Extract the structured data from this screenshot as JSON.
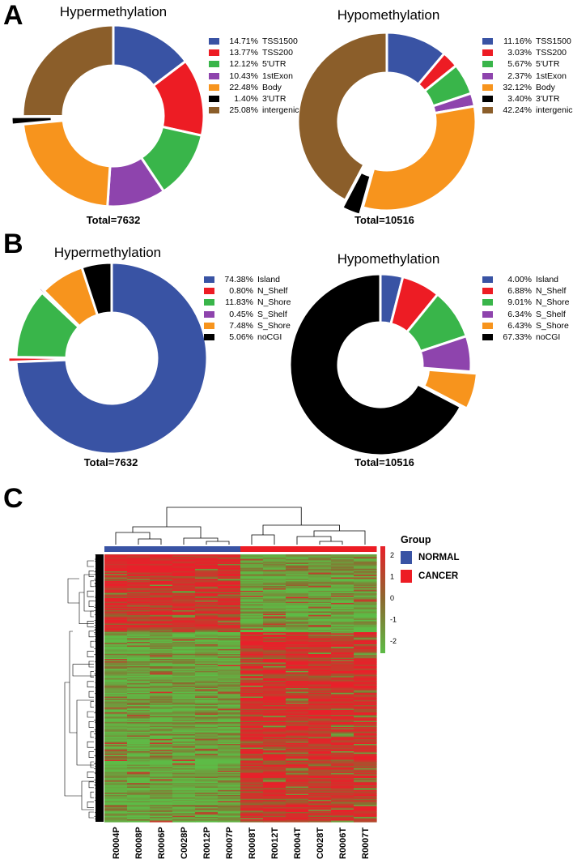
{
  "panels": {
    "a_label": "A",
    "b_label": "B",
    "c_label": "C"
  },
  "chart_data": [
    {
      "type": "pie",
      "variant": "donut",
      "panel": "A",
      "title": "Hypermethylation",
      "total_label": "Total=7632",
      "slices": [
        {
          "pct": "14.71%",
          "label": "TSS1500",
          "value": 14.71,
          "color": "#3953a4"
        },
        {
          "pct": "13.77%",
          "label": "TSS200",
          "value": 13.77,
          "color": "#ed1c24"
        },
        {
          "pct": "12.12%",
          "label": "5'UTR",
          "value": 12.12,
          "color": "#39b54a"
        },
        {
          "pct": "10.43%",
          "label": "1stExon",
          "value": 10.43,
          "color": "#8e44ad"
        },
        {
          "pct": "22.48%",
          "label": "Body",
          "value": 22.48,
          "color": "#f7941d"
        },
        {
          "pct": "1.40%",
          "label": "3'UTR",
          "value": 1.4,
          "color": "#000000"
        },
        {
          "pct": "25.08%",
          "label": "intergenic",
          "value": 25.08,
          "color": "#8b5e2a"
        }
      ]
    },
    {
      "type": "pie",
      "variant": "donut",
      "panel": "A",
      "title": "Hypomethylation",
      "total_label": "Total=10516",
      "slices": [
        {
          "pct": "11.16%",
          "label": "TSS1500",
          "value": 11.16,
          "color": "#3953a4"
        },
        {
          "pct": "3.03%",
          "label": "TSS200",
          "value": 3.03,
          "color": "#ed1c24"
        },
        {
          "pct": "5.67%",
          "label": "5'UTR",
          "value": 5.67,
          "color": "#39b54a"
        },
        {
          "pct": "2.37%",
          "label": "1stExon",
          "value": 2.37,
          "color": "#8e44ad"
        },
        {
          "pct": "32.12%",
          "label": "Body",
          "value": 32.12,
          "color": "#f7941d"
        },
        {
          "pct": "3.40%",
          "label": "3'UTR",
          "value": 3.4,
          "color": "#000000"
        },
        {
          "pct": "42.24%",
          "label": "intergenic",
          "value": 42.24,
          "color": "#8b5e2a"
        }
      ]
    },
    {
      "type": "pie",
      "variant": "donut",
      "panel": "B",
      "title": "Hypermethylation",
      "total_label": "Total=7632",
      "slices": [
        {
          "pct": "74.38%",
          "label": "Island",
          "value": 74.38,
          "color": "#3953a4"
        },
        {
          "pct": "0.80%",
          "label": "N_Shelf",
          "value": 0.8,
          "color": "#ed1c24"
        },
        {
          "pct": "11.83%",
          "label": "N_Shore",
          "value": 11.83,
          "color": "#39b54a"
        },
        {
          "pct": "0.45%",
          "label": "S_Shelf",
          "value": 0.45,
          "color": "#8e44ad"
        },
        {
          "pct": "7.48%",
          "label": "S_Shore",
          "value": 7.48,
          "color": "#f7941d"
        },
        {
          "pct": "5.06%",
          "label": "noCGI",
          "value": 5.06,
          "color": "#000000"
        }
      ]
    },
    {
      "type": "pie",
      "variant": "donut",
      "panel": "B",
      "title": "Hypomethylation",
      "total_label": "Total=10516",
      "slices": [
        {
          "pct": "4.00%",
          "label": "Island",
          "value": 4.0,
          "color": "#3953a4"
        },
        {
          "pct": "6.88%",
          "label": "N_Shelf",
          "value": 6.88,
          "color": "#ed1c24"
        },
        {
          "pct": "9.01%",
          "label": "N_Shore",
          "value": 9.01,
          "color": "#39b54a"
        },
        {
          "pct": "6.34%",
          "label": "S_Shelf",
          "value": 6.34,
          "color": "#8e44ad"
        },
        {
          "pct": "6.43%",
          "label": "S_Shore",
          "value": 6.43,
          "color": "#f7941d"
        },
        {
          "pct": "67.33%",
          "label": "noCGI",
          "value": 67.33,
          "color": "#000000"
        }
      ]
    },
    {
      "type": "heatmap",
      "panel": "C",
      "samples": [
        "R0004P",
        "R0008P",
        "R0006P",
        "C0028P",
        "R0012P",
        "R0007P",
        "R0008T",
        "R0012T",
        "R0004T",
        "C0028T",
        "R0006T",
        "R0007T"
      ],
      "groups": [
        "NORMAL",
        "NORMAL",
        "NORMAL",
        "NORMAL",
        "NORMAL",
        "NORMAL",
        "CANCER",
        "CANCER",
        "CANCER",
        "CANCER",
        "CANCER",
        "CANCER"
      ],
      "legend_title": "Group",
      "legend_groups": [
        {
          "name": "NORMAL",
          "color": "#3953a4"
        },
        {
          "name": "CANCER",
          "color": "#ed1c24"
        }
      ],
      "colorbar_ticks": [
        "2",
        "1",
        "0",
        "-1",
        "-2"
      ],
      "color_range": [
        -2,
        2
      ],
      "low_color": "#5dbb46",
      "mid_color": "#8b6a2f",
      "high_color": "#e8202a",
      "row_blocks": [
        {
          "fraction": 0.29,
          "normal_level": 1.5,
          "cancer_level": -1.4
        },
        {
          "fraction": 0.71,
          "normal_level": -1.5,
          "cancer_level": 1.4
        }
      ]
    }
  ]
}
